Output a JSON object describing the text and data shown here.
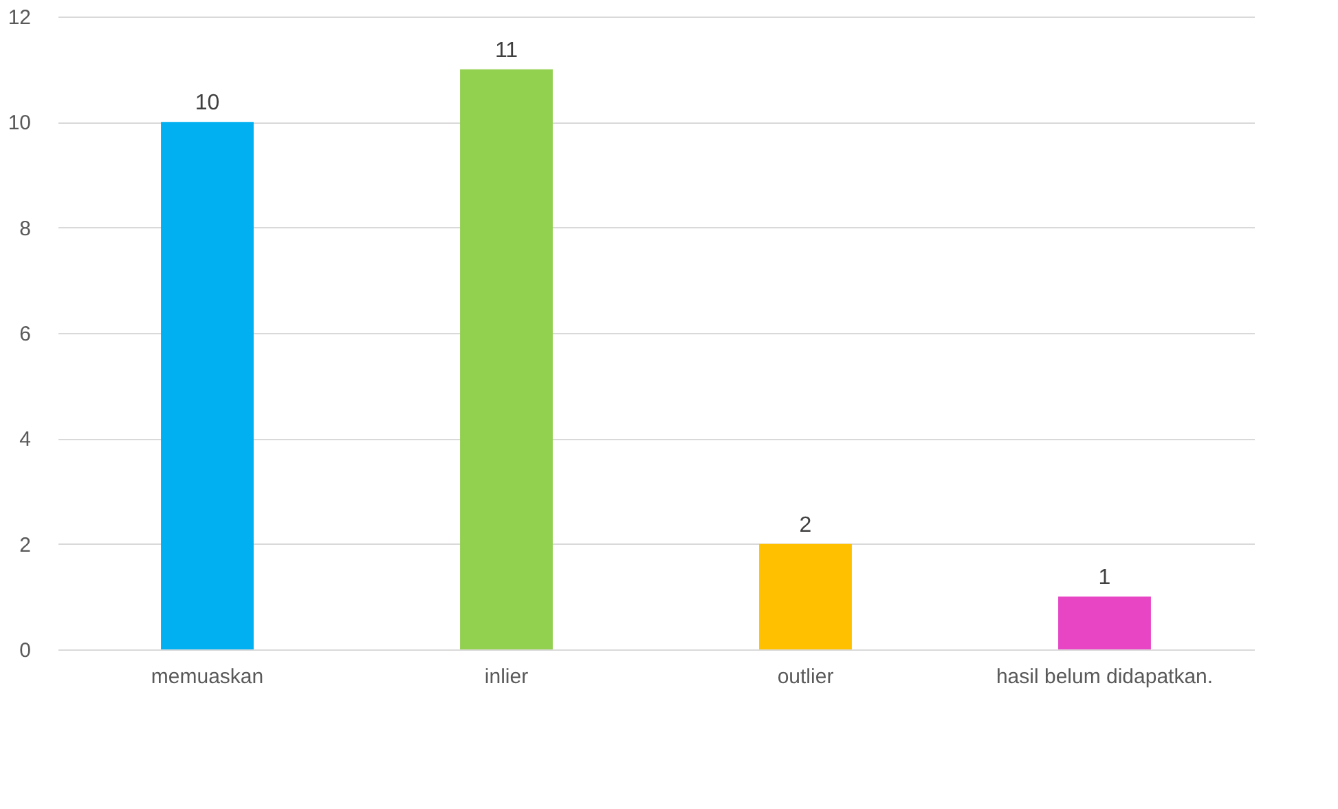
{
  "chart_data": {
    "type": "bar",
    "categories": [
      "memuaskan",
      "inlier",
      "outlier",
      "hasil belum didapatkan."
    ],
    "values": [
      10,
      11,
      2,
      1
    ],
    "colors": [
      "#00b0f0",
      "#92d050",
      "#ffc000",
      "#e845c5"
    ],
    "ylim": [
      0,
      12
    ],
    "yticks": [
      0,
      2,
      4,
      6,
      8,
      10,
      12
    ],
    "grid": "y",
    "data_labels": true
  }
}
